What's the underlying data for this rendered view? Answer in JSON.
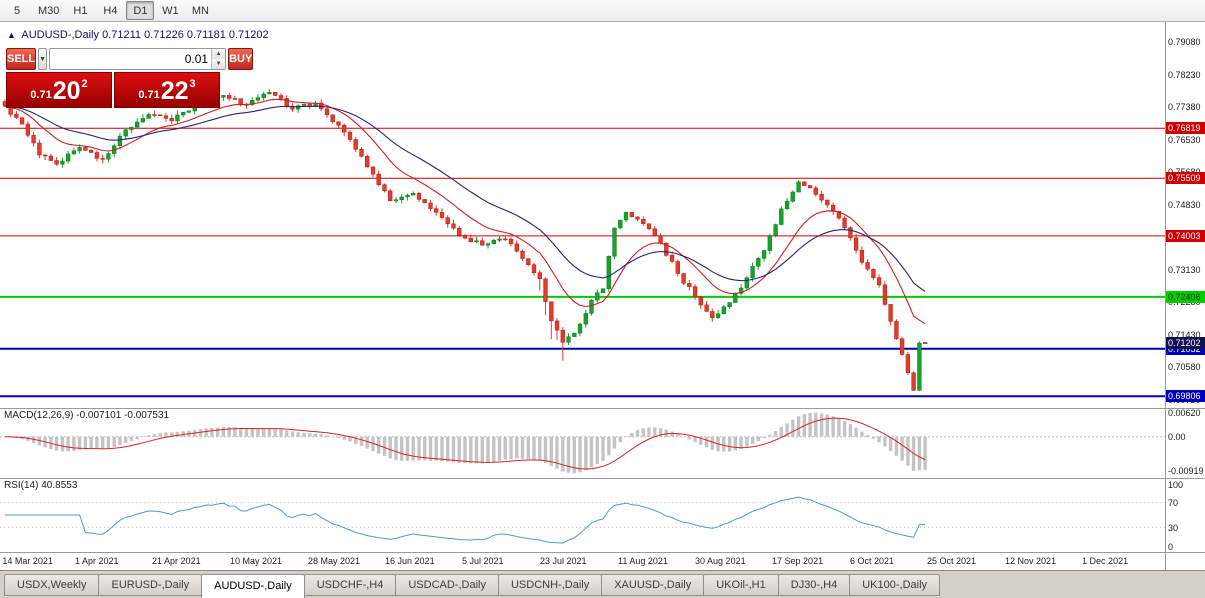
{
  "toolbar": {
    "timeframes": [
      "5",
      "M30",
      "H1",
      "H4",
      "D1",
      "W1",
      "MN"
    ],
    "active": "D1"
  },
  "title": {
    "symbol": "AUDUSD-,Daily",
    "ohlc": "0.71211 0.71226 0.71181 0.71202"
  },
  "trade_panel": {
    "sell_label": "SELL",
    "buy_label": "BUY",
    "volume": "0.01",
    "sell_price": {
      "prefix": "0.71",
      "big": "20",
      "sup": "2"
    },
    "buy_price": {
      "prefix": "0.71",
      "big": "22",
      "sup": "3"
    }
  },
  "chart_data": {
    "type": "candlestick",
    "symbol": "AUDUSD-",
    "timeframe": "Daily",
    "title": "AUDUSD-,Daily",
    "price_range": {
      "min": 0.695,
      "max": 0.796
    },
    "bars_total": 161,
    "y_ticks": [
      0.7908,
      0.7823,
      0.7738,
      0.7653,
      0.7568,
      0.7483,
      0.7398,
      0.7313,
      0.7228,
      0.7143,
      0.7058,
      0.6973
    ],
    "close_anchors": [
      [
        0,
        0.774
      ],
      [
        3,
        0.7693
      ],
      [
        6,
        0.7612
      ],
      [
        9,
        0.7588
      ],
      [
        13,
        0.7632
      ],
      [
        17,
        0.7601
      ],
      [
        21,
        0.7678
      ],
      [
        25,
        0.7718
      ],
      [
        29,
        0.7701
      ],
      [
        33,
        0.7742
      ],
      [
        38,
        0.7768
      ],
      [
        42,
        0.7744
      ],
      [
        46,
        0.7776
      ],
      [
        50,
        0.7732
      ],
      [
        54,
        0.7748
      ],
      [
        58,
        0.769
      ],
      [
        61,
        0.7627
      ],
      [
        64,
        0.7562
      ],
      [
        67,
        0.7492
      ],
      [
        71,
        0.7512
      ],
      [
        75,
        0.7462
      ],
      [
        79,
        0.7402
      ],
      [
        83,
        0.7376
      ],
      [
        87,
        0.7392
      ],
      [
        90,
        0.7341
      ],
      [
        93,
        0.7288
      ],
      [
        95,
        0.7178
      ],
      [
        97,
        0.7122
      ],
      [
        99,
        0.7146
      ],
      [
        102,
        0.7232
      ],
      [
        104,
        0.7262
      ],
      [
        106,
        0.7421
      ],
      [
        108,
        0.7462
      ],
      [
        111,
        0.7432
      ],
      [
        114,
        0.7381
      ],
      [
        117,
        0.7302
      ],
      [
        120,
        0.7241
      ],
      [
        123,
        0.7186
      ],
      [
        126,
        0.7226
      ],
      [
        129,
        0.7291
      ],
      [
        132,
        0.7362
      ],
      [
        135,
        0.7471
      ],
      [
        138,
        0.7542
      ],
      [
        140,
        0.7526
      ],
      [
        143,
        0.7481
      ],
      [
        146,
        0.7422
      ],
      [
        149,
        0.7331
      ],
      [
        152,
        0.7272
      ],
      [
        155,
        0.7131
      ],
      [
        157,
        0.7042
      ],
      [
        158,
        0.6996
      ],
      [
        159,
        0.712
      ],
      [
        160,
        0.71202
      ]
    ],
    "hammer_zone": [
      93,
      97
    ],
    "current_bar": {
      "o": 0.71211,
      "h": 0.71226,
      "l": 0.71181,
      "c": 0.71202
    },
    "current_price": 0.71202,
    "ma_fast_period": 12,
    "ma_slow_period": 26,
    "levels": [
      {
        "price": 0.76819,
        "label": "0.76819",
        "color": "#cc0000",
        "width": 1,
        "text": "#ffffff"
      },
      {
        "price": 0.75509,
        "label": "0.75509",
        "color": "#cc0000",
        "width": 1,
        "text": "#ffffff"
      },
      {
        "price": 0.74003,
        "label": "0.74003",
        "color": "#cc0000",
        "width": 1,
        "text": "#ffffff"
      },
      {
        "price": 0.72406,
        "label": "0.72406",
        "color": "#00cc00",
        "width": 2,
        "text": "#003300"
      },
      {
        "price": 0.71052,
        "label": "0.71052",
        "color": "#0000bb",
        "width": 2,
        "text": "#ffffff"
      },
      {
        "price": 0.69806,
        "label": "0.69806",
        "color": "#0000bb",
        "width": 2,
        "text": "#ffffff"
      }
    ],
    "x_labels": [
      {
        "label": "14 Mar 2021",
        "f": 0.002
      },
      {
        "label": "1 Apr 2021",
        "f": 0.0644
      },
      {
        "label": "21 Apr 2021",
        "f": 0.1305
      },
      {
        "label": "10 May 2021",
        "f": 0.1974
      },
      {
        "label": "28 May 2021",
        "f": 0.2644
      },
      {
        "label": "16 Jun 2021",
        "f": 0.3305
      },
      {
        "label": "5 Jul 2021",
        "f": 0.3966
      },
      {
        "label": "23 Jul 2021",
        "f": 0.4635
      },
      {
        "label": "11 Aug 2021",
        "f": 0.5305
      },
      {
        "label": "30 Aug 2021",
        "f": 0.5966
      },
      {
        "label": "17 Sep 2021",
        "f": 0.6627
      },
      {
        "label": "6 Oct 2021",
        "f": 0.7296
      },
      {
        "label": "25 Oct 2021",
        "f": 0.7957
      },
      {
        "label": "12 Nov 2021",
        "f": 0.8627
      },
      {
        "label": "1 Dec 2021",
        "f": 0.9288
      }
    ]
  },
  "macd": {
    "label": "MACD(12,26,9)",
    "values": "-0.007101 -0.007531",
    "fast": 12,
    "slow": 26,
    "signal": 9,
    "axis_labels": [
      {
        "text": "0.00620",
        "v": 0.0062
      },
      {
        "text": "0.00",
        "v": 0
      },
      {
        "text": "-0.00919",
        "v": -0.00919
      }
    ]
  },
  "rsi": {
    "label": "RSI(14)",
    "value": "40.8553",
    "period": 14,
    "guide_levels": [
      70,
      30
    ],
    "axis_labels": [
      {
        "text": "100",
        "v": 100
      },
      {
        "text": "70",
        "v": 70
      },
      {
        "text": "30",
        "v": 30
      },
      {
        "text": "0",
        "v": 0
      }
    ]
  },
  "tabs": [
    "USDX,Weekly",
    "EURUSD-,Daily",
    "AUDUSD-,Daily",
    "USDCHF-,H4",
    "USDCAD-,Daily",
    "USDCNH-,Daily",
    "XAUUSD-,Daily",
    "UKOil-,H1",
    "DJ30-,H4",
    "UK100-,Daily"
  ],
  "active_tab": "AUDUSD-,Daily",
  "colors": {
    "up": "#17a22b",
    "up_border": "#0c7a1d",
    "down": "#e33b2e",
    "down_border": "#b01c12",
    "ma_fast": "#d02020",
    "ma_slow": "#23237f",
    "macd_hist": "#c4c4c4",
    "macd_signal": "#dd2222",
    "rsi_line": "#4b9bd7",
    "level_guide": "#c0c0c0",
    "current_box_bg": "#11114e"
  }
}
